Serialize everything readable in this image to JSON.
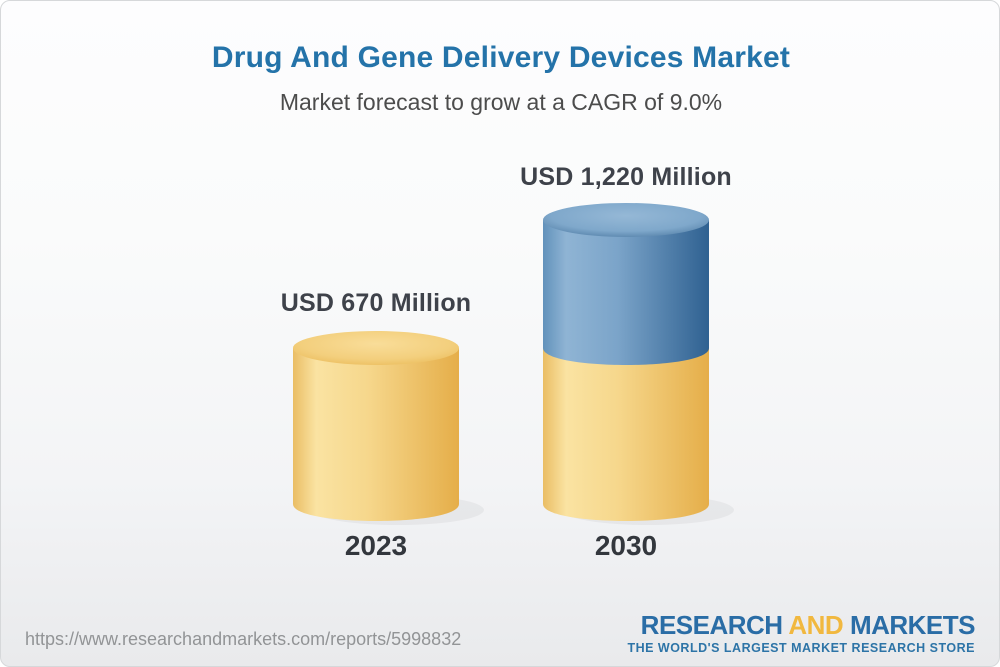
{
  "header": {
    "title": "Drug And Gene Delivery Devices Market",
    "subtitle": "Market forecast to grow at a CAGR of 9.0%"
  },
  "footer": {
    "url": "https://www.researchandmarkets.com/reports/5998832",
    "logo": {
      "part1": "RESEARCH",
      "part2": "AND",
      "part3": "MARKETS",
      "tagline": "THE WORLD'S LARGEST MARKET RESEARCH STORE"
    }
  },
  "colors": {
    "title_blue": "#2473a9",
    "bar_yellow": "#f2cd7a",
    "bar_blue": "#6f9ec6",
    "logo_blue": "#2a6da6",
    "logo_gold": "#f1b83f",
    "label_dark": "#3e424a",
    "url_gray": "#929496"
  },
  "chart_data": {
    "type": "bar",
    "subtype": "3d-cylinder-stacked",
    "title": "Drug And Gene Delivery Devices Market",
    "subtitle": "Market forecast to grow at a CAGR of 9.0%",
    "cagr_percent": 9.0,
    "unit": "USD Million",
    "categories": [
      "2023",
      "2030"
    ],
    "values": [
      670,
      1220
    ],
    "value_labels": [
      "USD 670 Million",
      "USD 1,220 Million"
    ],
    "legend": "none",
    "axes": "none",
    "colors": {
      "yellow": "#f2cd7a",
      "blue": "#6f9ec6"
    },
    "bars": [
      {
        "category": "2023",
        "label": "USD 670 Million",
        "total": 670,
        "segments": [
          {
            "name": "market-2023",
            "value": 670,
            "color": "yellow"
          }
        ]
      },
      {
        "category": "2030",
        "label": "USD 1,220 Million",
        "total": 1220,
        "segments": [
          {
            "name": "market-2023-base",
            "value": 670,
            "color": "yellow"
          },
          {
            "name": "growth-to-2030",
            "value": 550,
            "color": "blue"
          }
        ]
      }
    ]
  }
}
